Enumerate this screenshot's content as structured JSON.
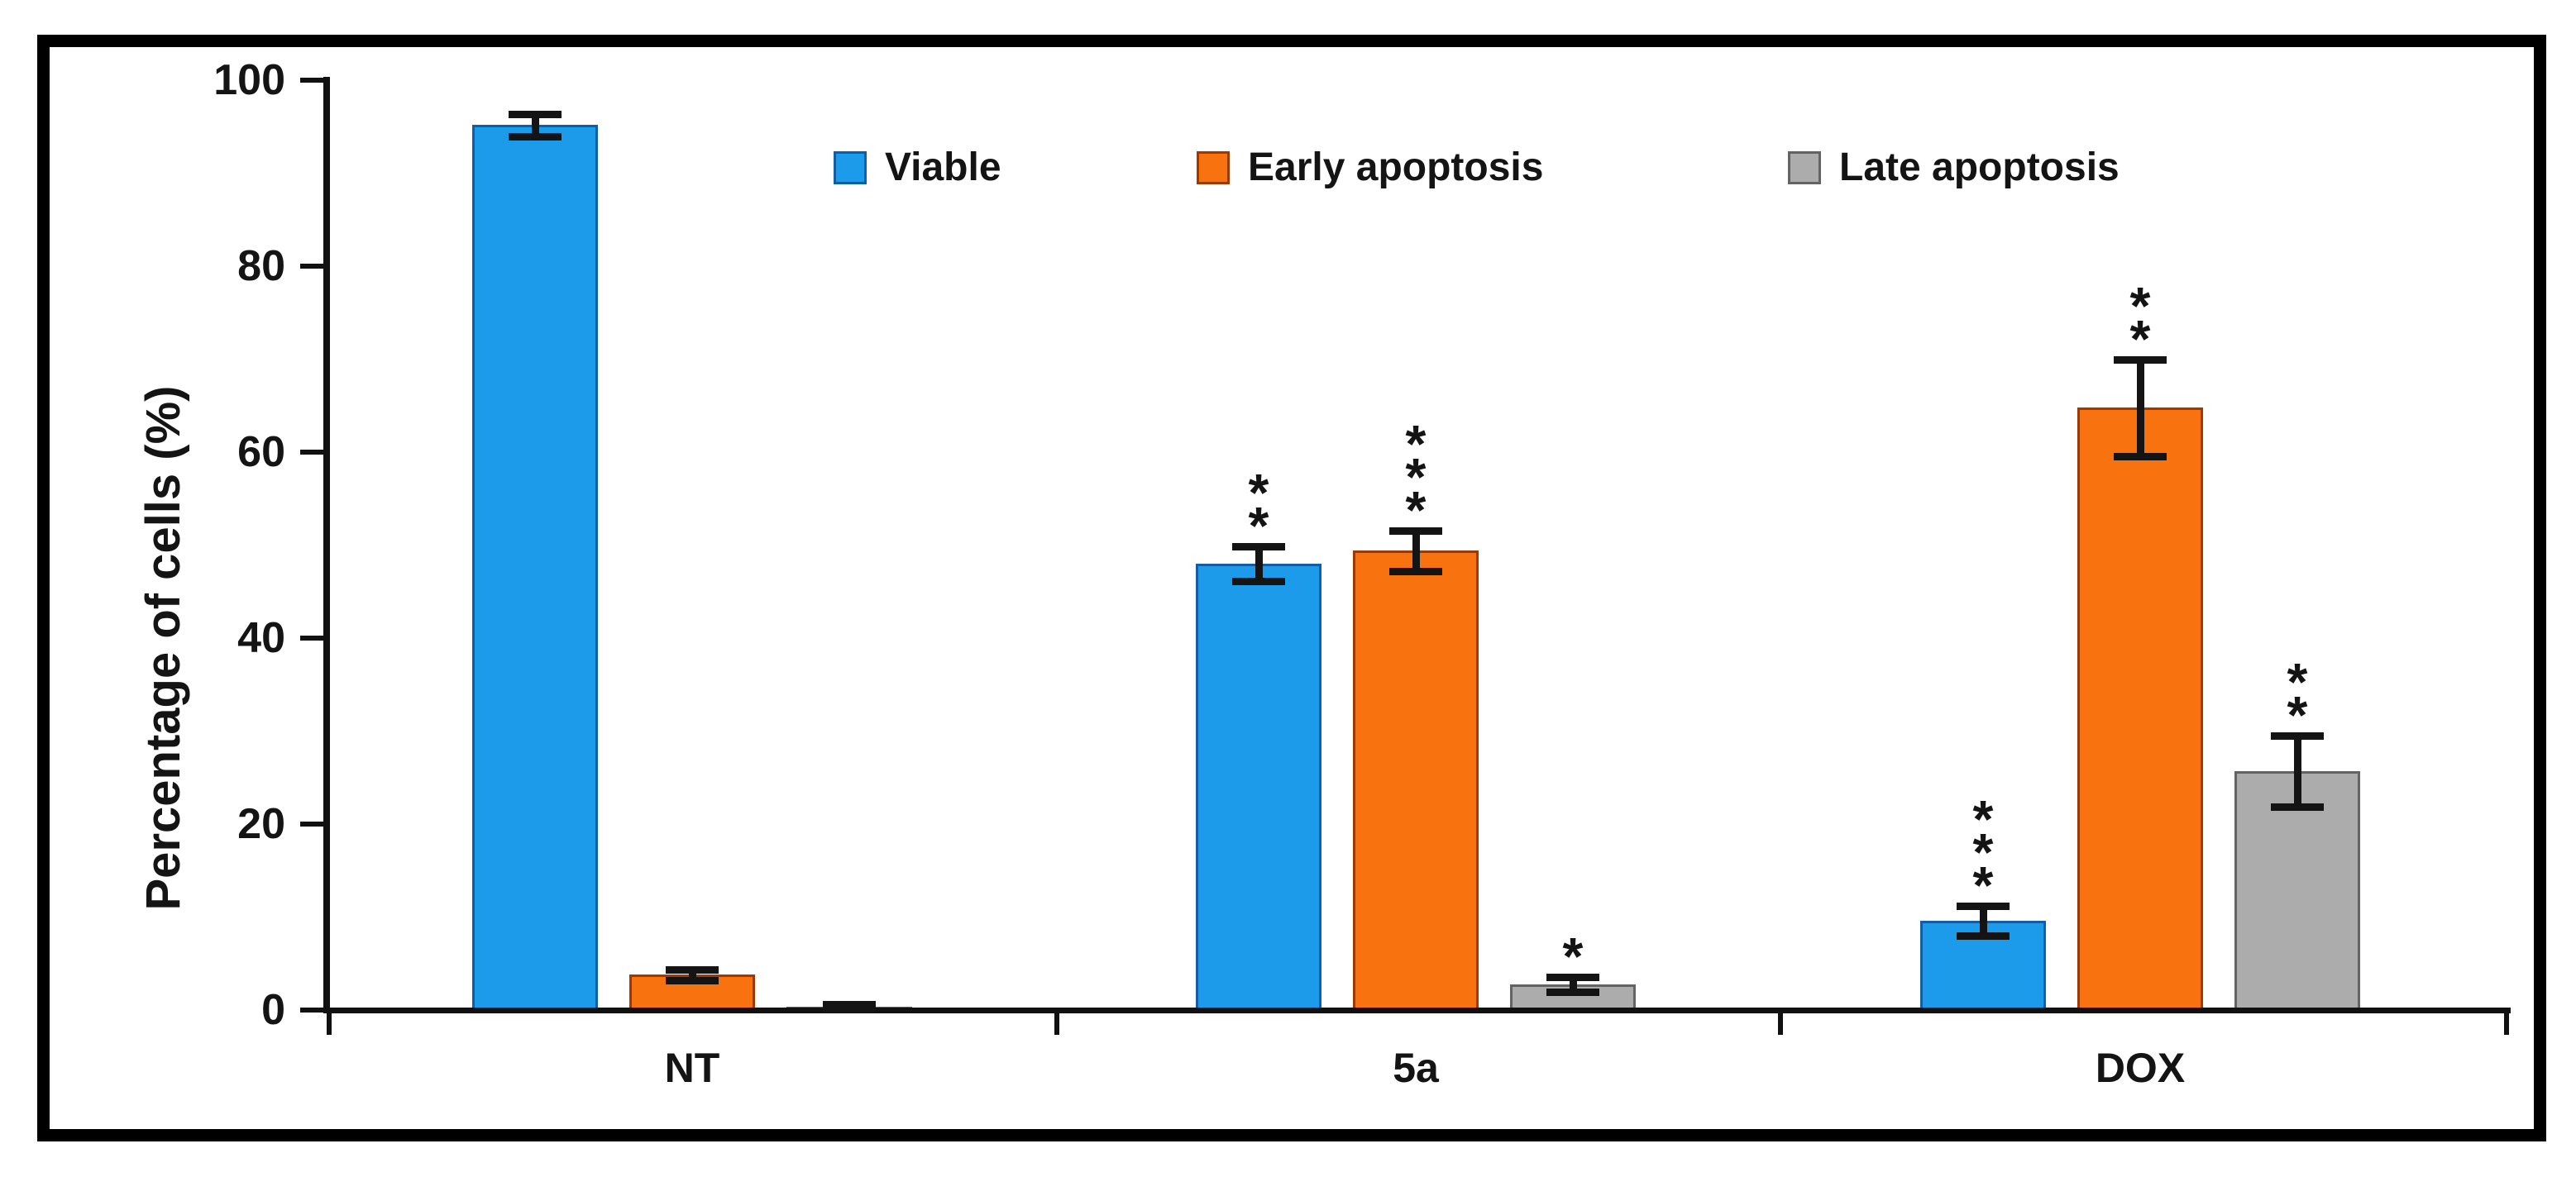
{
  "figure": {
    "background": "#ffffff",
    "frame_color": "#000000",
    "text_color": "#141414"
  },
  "chart_data": {
    "type": "bar",
    "title": "",
    "xlabel": "",
    "ylabel": "Percentage of cells (%)",
    "ylim": [
      0,
      100
    ],
    "yticks": [
      0,
      20,
      40,
      60,
      80,
      100
    ],
    "categories": [
      "NT",
      "5a",
      "DOX"
    ],
    "series": [
      {
        "name": "Viable",
        "color": "#1B9BE9",
        "border_color": "#0F5FA8",
        "values": [
          95.2,
          48.0,
          9.6
        ],
        "errors": [
          1.2,
          1.9,
          1.6
        ],
        "significance": [
          "",
          "**",
          "***"
        ]
      },
      {
        "name": "Early apoptosis",
        "color": "#F8730F",
        "border_color": "#9E3A00",
        "values": [
          3.8,
          49.4,
          64.8
        ],
        "errors": [
          0.6,
          2.2,
          5.2
        ],
        "significance": [
          "",
          "***",
          "**"
        ]
      },
      {
        "name": "Late apoptosis",
        "color": "#ACACAC",
        "border_color": "#636363",
        "values": [
          0.4,
          2.8,
          25.7
        ],
        "errors": [
          0.2,
          0.8,
          3.8
        ],
        "significance": [
          "",
          "*",
          "**"
        ]
      }
    ],
    "error_bar_color": "#141414",
    "legend_position": "top-center",
    "grid": false
  }
}
